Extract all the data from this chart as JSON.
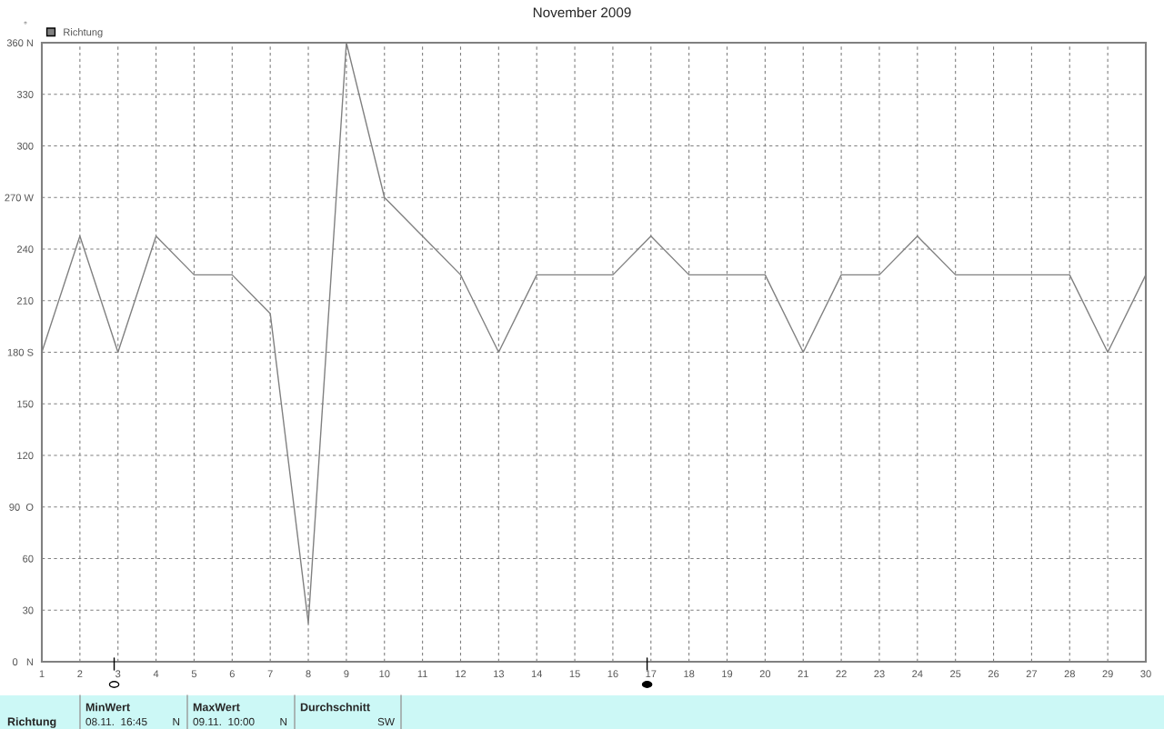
{
  "chart_data": {
    "type": "line",
    "title": "November 2009",
    "ylabel": "°",
    "x": [
      1,
      2,
      3,
      4,
      5,
      6,
      7,
      8,
      9,
      10,
      11,
      12,
      13,
      14,
      15,
      16,
      17,
      18,
      19,
      20,
      21,
      22,
      23,
      24,
      25,
      26,
      27,
      28,
      29,
      30
    ],
    "series": [
      {
        "name": "Richtung",
        "color": "#808080",
        "values": [
          180,
          247.5,
          180,
          247.5,
          225,
          225,
          202.5,
          22.5,
          360,
          270,
          247.5,
          225,
          180,
          225,
          225,
          225,
          247.5,
          225,
          225,
          225,
          180,
          225,
          225,
          247.5,
          225,
          225,
          225,
          225,
          180,
          225
        ]
      }
    ],
    "xlim": [
      1,
      30
    ],
    "xticks": [
      1,
      2,
      3,
      4,
      5,
      6,
      7,
      8,
      9,
      10,
      11,
      12,
      13,
      14,
      15,
      16,
      17,
      18,
      19,
      20,
      21,
      22,
      23,
      24,
      25,
      26,
      27,
      28,
      29,
      30
    ],
    "ylim": [
      0,
      360
    ],
    "yticks": [
      {
        "value": 0,
        "label": "0   N"
      },
      30,
      60,
      {
        "value": 90,
        "label": "90  O"
      },
      120,
      150,
      {
        "value": 180,
        "label": "180 S"
      },
      210,
      240,
      {
        "value": 270,
        "label": "270 W"
      },
      300,
      330,
      {
        "value": 360,
        "label": "360 N"
      }
    ],
    "grid": true,
    "line_style": "solid",
    "marker": "none",
    "legend": "top left",
    "annotations": [
      "Richtung",
      "MinWert",
      "08.11.  16:45",
      "N",
      "MaxWert",
      "09.11.  10:00",
      "N",
      "Durchschnitt",
      "SW"
    ]
  }
}
